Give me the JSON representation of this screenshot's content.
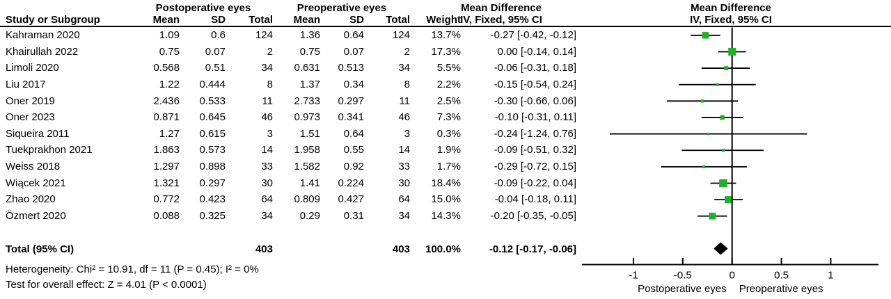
{
  "header": {
    "group_post": "Postoperative eyes",
    "group_pre": "Preoperative eyes",
    "md_title": "Mean Difference",
    "md_subtitle": "IV, Fixed, 95% CI",
    "study_col": "Study or Subgroup",
    "mean_col": "Mean",
    "sd_col": "SD",
    "total_col": "Total",
    "weight_col": "Weight"
  },
  "studies": [
    {
      "name": "Kahraman 2020",
      "post_mean": "1.09",
      "post_sd": "0.6",
      "post_total": "124",
      "pre_mean": "1.36",
      "pre_sd": "0.64",
      "pre_total": "124",
      "weight": "13.7%",
      "ci_text": "-0.27 [-0.42, -0.12]",
      "md": -0.27,
      "lo": -0.42,
      "hi": -0.12
    },
    {
      "name": "Khairullah 2022",
      "post_mean": "0.75",
      "post_sd": "0.07",
      "post_total": "2",
      "pre_mean": "0.75",
      "pre_sd": "0.07",
      "pre_total": "2",
      "weight": "17.3%",
      "ci_text": "0.00 [-0.14, 0.14]",
      "md": 0.0,
      "lo": -0.14,
      "hi": 0.14
    },
    {
      "name": "Limoli 2020",
      "post_mean": "0.568",
      "post_sd": "0.51",
      "post_total": "34",
      "pre_mean": "0.631",
      "pre_sd": "0.513",
      "pre_total": "34",
      "weight": "5.5%",
      "ci_text": "-0.06 [-0.31, 0.18]",
      "md": -0.06,
      "lo": -0.31,
      "hi": 0.18
    },
    {
      "name": "Liu 2017",
      "post_mean": "1.22",
      "post_sd": "0.444",
      "post_total": "8",
      "pre_mean": "1.37",
      "pre_sd": "0.34",
      "pre_total": "8",
      "weight": "2.2%",
      "ci_text": "-0.15 [-0.54, 0.24]",
      "md": -0.15,
      "lo": -0.54,
      "hi": 0.24
    },
    {
      "name": "Oner 2019",
      "post_mean": "2.436",
      "post_sd": "0.533",
      "post_total": "11",
      "pre_mean": "2.733",
      "pre_sd": "0.297",
      "pre_total": "11",
      "weight": "2.5%",
      "ci_text": "-0.30 [-0.66, 0.06]",
      "md": -0.3,
      "lo": -0.66,
      "hi": 0.06
    },
    {
      "name": "Oner 2023",
      "post_mean": "0.871",
      "post_sd": "0.645",
      "post_total": "46",
      "pre_mean": "0.973",
      "pre_sd": "0.341",
      "pre_total": "46",
      "weight": "7.3%",
      "ci_text": "-0.10 [-0.31, 0.11]",
      "md": -0.1,
      "lo": -0.31,
      "hi": 0.11
    },
    {
      "name": "Siqueira 2011",
      "post_mean": "1.27",
      "post_sd": "0.615",
      "post_total": "3",
      "pre_mean": "1.51",
      "pre_sd": "0.64",
      "pre_total": "3",
      "weight": "0.3%",
      "ci_text": "-0.24 [-1.24, 0.76]",
      "md": -0.24,
      "lo": -1.24,
      "hi": 0.76
    },
    {
      "name": "Tuekprakhon 2021",
      "post_mean": "1.863",
      "post_sd": "0.573",
      "post_total": "14",
      "pre_mean": "1.958",
      "pre_sd": "0.55",
      "pre_total": "14",
      "weight": "1.9%",
      "ci_text": "-0.09 [-0.51, 0.32]",
      "md": -0.09,
      "lo": -0.51,
      "hi": 0.32
    },
    {
      "name": "Weiss 2018",
      "post_mean": "1.297",
      "post_sd": "0.898",
      "post_total": "33",
      "pre_mean": "1.582",
      "pre_sd": "0.92",
      "pre_total": "33",
      "weight": "1.7%",
      "ci_text": "-0.29 [-0.72, 0.15]",
      "md": -0.29,
      "lo": -0.72,
      "hi": 0.15
    },
    {
      "name": "Wiącek 2021",
      "post_mean": "1.321",
      "post_sd": "0.297",
      "post_total": "30",
      "pre_mean": "1.41",
      "pre_sd": "0.224",
      "pre_total": "30",
      "weight": "18.4%",
      "ci_text": "-0.09 [-0.22, 0.04]",
      "md": -0.09,
      "lo": -0.22,
      "hi": 0.04
    },
    {
      "name": "Zhao 2020",
      "post_mean": "0.772",
      "post_sd": "0.423",
      "post_total": "64",
      "pre_mean": "0.809",
      "pre_sd": "0.427",
      "pre_total": "64",
      "weight": "15.0%",
      "ci_text": "-0.04 [-0.18, 0.11]",
      "md": -0.04,
      "lo": -0.18,
      "hi": 0.11
    },
    {
      "name": "Özmert 2020",
      "post_mean": "0.088",
      "post_sd": "0.325",
      "post_total": "34",
      "pre_mean": "0.29",
      "pre_sd": "0.31",
      "pre_total": "34",
      "weight": "14.3%",
      "ci_text": "-0.20 [-0.35, -0.05]",
      "md": -0.2,
      "lo": -0.35,
      "hi": -0.05
    }
  ],
  "total": {
    "label": "Total (95% CI)",
    "post_total": "403",
    "pre_total": "403",
    "weight": "100.0%",
    "ci_text": "-0.12 [-0.17, -0.06]",
    "md": -0.12,
    "lo": -0.17,
    "hi": -0.06
  },
  "footnotes": {
    "heterogeneity": "Heterogeneity: Chi² = 10.91, df = 11 (P = 0.45); I² = 0%",
    "overall_effect": "Test for overall effect: Z = 4.01 (P < 0.0001)"
  },
  "axis": {
    "tick_values": [
      -1,
      -0.5,
      0,
      0.5,
      1
    ],
    "tick_labels": [
      "-1",
      "-0.5",
      "0",
      "0.5",
      "1"
    ],
    "left_label": "Postoperative eyes",
    "right_label": "Preoperative eyes"
  },
  "colors": {
    "square": "#1db328",
    "line": "#000000",
    "diamond": "#000000"
  },
  "chart_data": {
    "type": "scatter",
    "subtype": "forest-plot-mean-difference",
    "title": "Mean Difference",
    "effect_model": "IV, Fixed, 95% CI",
    "x_ticks": [
      -1,
      -0.5,
      0,
      0.5,
      1
    ],
    "x_axis_left_label": "Postoperative eyes",
    "x_axis_right_label": "Preoperative eyes",
    "studies": [
      "Kahraman 2020",
      "Khairullah 2022",
      "Limoli 2020",
      "Liu 2017",
      "Oner 2019",
      "Oner 2023",
      "Siqueira 2011",
      "Tuekprakhon 2021",
      "Weiss 2018",
      "Wiącek 2021",
      "Zhao 2020",
      "Özmert 2020"
    ],
    "mean_difference": [
      -0.27,
      0.0,
      -0.06,
      -0.15,
      -0.3,
      -0.1,
      -0.24,
      -0.09,
      -0.29,
      -0.09,
      -0.04,
      -0.2
    ],
    "ci_lower": [
      -0.42,
      -0.14,
      -0.31,
      -0.54,
      -0.66,
      -0.31,
      -1.24,
      -0.51,
      -0.72,
      -0.22,
      -0.18,
      -0.35
    ],
    "ci_upper": [
      -0.12,
      0.14,
      0.18,
      0.24,
      0.06,
      0.11,
      0.76,
      0.32,
      0.15,
      0.04,
      0.11,
      -0.05
    ],
    "weights_pct": [
      13.7,
      17.3,
      5.5,
      2.2,
      2.5,
      7.3,
      0.3,
      1.9,
      1.7,
      18.4,
      15.0,
      14.3
    ],
    "summary": {
      "label": "Total (95% CI)",
      "mean_difference": -0.12,
      "ci": [
        -0.17,
        -0.06
      ],
      "total_post": 403,
      "total_pre": 403,
      "weight_pct": 100.0
    },
    "heterogeneity": {
      "chi2": 10.91,
      "df": 11,
      "p": 0.45,
      "i2_pct": 0
    },
    "overall_effect": {
      "z": 4.01,
      "p": "< 0.0001"
    }
  }
}
